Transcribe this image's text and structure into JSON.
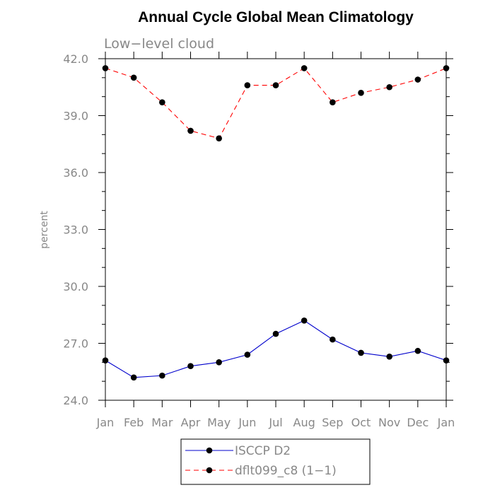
{
  "chart_data": {
    "type": "line",
    "title": "Annual Cycle Global Mean Climatology",
    "subtitle": "Low−level cloud",
    "xlabel": "",
    "ylabel": "percent",
    "categories": [
      "Jan",
      "Feb",
      "Mar",
      "Apr",
      "May",
      "Jun",
      "Jul",
      "Aug",
      "Sep",
      "Oct",
      "Nov",
      "Dec",
      "Jan"
    ],
    "ylim": [
      24.0,
      42.0
    ],
    "yticks": [
      "24.0",
      "27.0",
      "30.0",
      "33.0",
      "36.0",
      "39.0",
      "42.0"
    ],
    "grid": false,
    "legend_position": "bottom-center",
    "series": [
      {
        "name": "ISCCP D2",
        "color": "#0000cc",
        "dash": "solid",
        "marker": "circle",
        "values": [
          26.1,
          25.2,
          25.3,
          25.8,
          26.0,
          26.4,
          27.5,
          28.2,
          27.2,
          26.5,
          26.3,
          26.6,
          26.1
        ]
      },
      {
        "name": "dflt099_c8 (1−1)",
        "color": "#ff0000",
        "dash": "dashed",
        "marker": "circle",
        "values": [
          41.5,
          41.0,
          39.7,
          38.2,
          37.8,
          40.6,
          40.6,
          41.5,
          39.7,
          40.2,
          40.5,
          40.9,
          41.5
        ]
      }
    ]
  }
}
